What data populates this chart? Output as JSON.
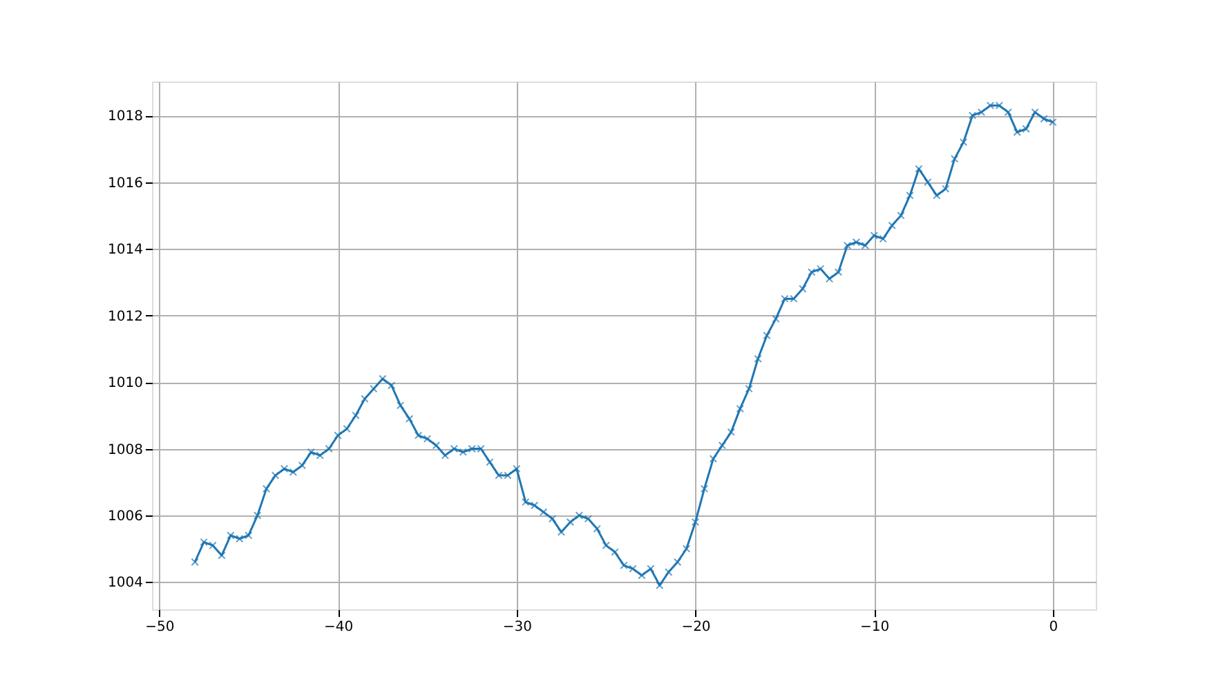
{
  "chart_data": {
    "type": "line",
    "x": [
      -48,
      -47.5,
      -47,
      -46.5,
      -46,
      -45.5,
      -45,
      -44.5,
      -44,
      -43.5,
      -43,
      -42.5,
      -42,
      -41.5,
      -41,
      -40.5,
      -40,
      -39.5,
      -39,
      -38.5,
      -38,
      -37.5,
      -37,
      -36.5,
      -36,
      -35.5,
      -35,
      -34.5,
      -34,
      -33.5,
      -33,
      -32.5,
      -32,
      -31.5,
      -31,
      -30.5,
      -30,
      -29.5,
      -29,
      -28.5,
      -28,
      -27.5,
      -27,
      -26.5,
      -26,
      -25.5,
      -25,
      -24.5,
      -24,
      -23.5,
      -23,
      -22.5,
      -22,
      -21.5,
      -21,
      -20.5,
      -20,
      -19.5,
      -19,
      -18.5,
      -18,
      -17.5,
      -17,
      -16.5,
      -16,
      -15.5,
      -15,
      -14.5,
      -14,
      -13.5,
      -13,
      -12.5,
      -12,
      -11.5,
      -11,
      -10.5,
      -10,
      -9.5,
      -9,
      -8.5,
      -8,
      -7.5,
      -7,
      -6.5,
      -6,
      -5.5,
      -5,
      -4.5,
      -4,
      -3.5,
      -3,
      -2.5,
      -2,
      -1.5,
      -1,
      -0.5,
      0
    ],
    "series": [
      {
        "color": "#1f77b4",
        "values": [
          1004.6,
          1005.2,
          1005.1,
          1004.8,
          1005.4,
          1005.3,
          1005.4,
          1006.0,
          1006.8,
          1007.2,
          1007.4,
          1007.3,
          1007.5,
          1007.9,
          1007.8,
          1008.0,
          1008.4,
          1008.6,
          1009.0,
          1009.5,
          1009.8,
          1010.1,
          1009.9,
          1009.3,
          1008.9,
          1008.4,
          1008.3,
          1008.1,
          1007.8,
          1008.0,
          1007.9,
          1008.0,
          1008.0,
          1007.6,
          1007.2,
          1007.2,
          1007.4,
          1006.4,
          1006.3,
          1006.1,
          1005.9,
          1005.5,
          1005.8,
          1006.0,
          1005.9,
          1005.6,
          1005.1,
          1004.9,
          1004.5,
          1004.4,
          1004.2,
          1004.4,
          1003.9,
          1004.3,
          1004.6,
          1005.0,
          1005.8,
          1006.8,
          1007.7,
          1008.1,
          1008.5,
          1009.2,
          1009.8,
          1010.7,
          1011.4,
          1011.9,
          1012.5,
          1012.5,
          1012.8,
          1013.3,
          1013.4,
          1013.1,
          1013.3,
          1014.1,
          1014.2,
          1014.1,
          1014.4,
          1014.3,
          1014.7,
          1015.0,
          1015.6,
          1016.4,
          1016.0,
          1015.6,
          1015.8,
          1016.7,
          1017.2,
          1018.0,
          1018.1,
          1018.3,
          1018.3,
          1018.1,
          1017.5,
          1017.6,
          1018.1,
          1017.9,
          1017.8
        ]
      }
    ],
    "xlim": [
      -50.4,
      2.4
    ],
    "ylim": [
      1003.18,
      1019.02
    ],
    "xticks": [
      -50,
      -40,
      -30,
      -20,
      -10,
      0
    ],
    "yticks": [
      1004,
      1006,
      1008,
      1010,
      1012,
      1014,
      1016,
      1018
    ],
    "grid": true,
    "marker": "cross",
    "line_style": "solid"
  }
}
